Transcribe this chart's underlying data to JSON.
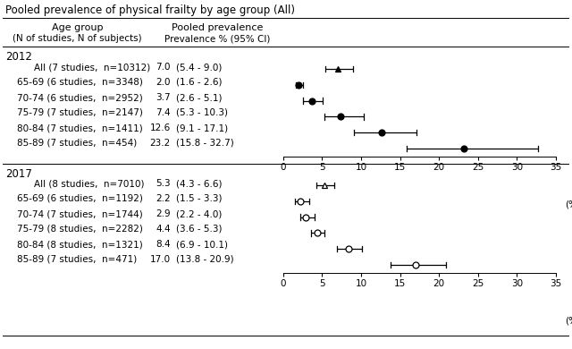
{
  "title": "Pooled prevalence of physical frailty by age group (All)",
  "xmin": 0,
  "xmax": 35,
  "xticks": [
    0,
    5,
    10,
    15,
    20,
    25,
    30,
    35
  ],
  "groups": [
    {
      "year": "2012",
      "rows": [
        {
          "label": "All (7 studies,  n=10312)",
          "val_str": "7.0",
          "ci_str": "(5.4 - 9.0)",
          "est": 7.0,
          "lo": 5.4,
          "hi": 9.0,
          "marker": "^",
          "filled": true,
          "indent": true
        },
        {
          "label": "65-69 (6 studies,  n=3348)",
          "val_str": "2.0",
          "ci_str": "(1.6 - 2.6)",
          "est": 2.0,
          "lo": 1.6,
          "hi": 2.6,
          "marker": "o",
          "filled": true,
          "indent": false
        },
        {
          "label": "70-74 (6 studies,  n=2952)",
          "val_str": "3.7",
          "ci_str": "(2.6 - 5.1)",
          "est": 3.7,
          "lo": 2.6,
          "hi": 5.1,
          "marker": "o",
          "filled": true,
          "indent": false
        },
        {
          "label": "75-79 (7 studies,  n=2147)",
          "val_str": "7.4",
          "ci_str": "(5.3 - 10.3)",
          "est": 7.4,
          "lo": 5.3,
          "hi": 10.3,
          "marker": "o",
          "filled": true,
          "indent": false
        },
        {
          "label": "80-84 (7 studies,  n=1411)",
          "val_str": "12.6",
          "ci_str": "(9.1 - 17.1)",
          "est": 12.6,
          "lo": 9.1,
          "hi": 17.1,
          "marker": "o",
          "filled": true,
          "indent": false
        },
        {
          "label": "85-89 (7 studies,  n=454)",
          "val_str": "23.2",
          "ci_str": "(15.8 - 32.7)",
          "est": 23.2,
          "lo": 15.8,
          "hi": 32.7,
          "marker": "o",
          "filled": true,
          "indent": false
        }
      ]
    },
    {
      "year": "2017",
      "rows": [
        {
          "label": "All (8 studies,  n=7010)",
          "val_str": "5.3",
          "ci_str": "(4.3 - 6.6)",
          "est": 5.3,
          "lo": 4.3,
          "hi": 6.6,
          "marker": "^",
          "filled": false,
          "indent": true
        },
        {
          "label": "65-69 (6 studies,  n=1192)",
          "val_str": "2.2",
          "ci_str": "(1.5 - 3.3)",
          "est": 2.2,
          "lo": 1.5,
          "hi": 3.3,
          "marker": "o",
          "filled": false,
          "indent": false
        },
        {
          "label": "70-74 (7 studies,  n=1744)",
          "val_str": "2.9",
          "ci_str": "(2.2 - 4.0)",
          "est": 2.9,
          "lo": 2.2,
          "hi": 4.0,
          "marker": "o",
          "filled": false,
          "indent": false
        },
        {
          "label": "75-79 (8 studies,  n=2282)",
          "val_str": "4.4",
          "ci_str": "(3.6 - 5.3)",
          "est": 4.4,
          "lo": 3.6,
          "hi": 5.3,
          "marker": "o",
          "filled": false,
          "indent": false
        },
        {
          "label": "80-84 (8 studies,  n=1321)",
          "val_str": "8.4",
          "ci_str": "(6.9 - 10.1)",
          "est": 8.4,
          "lo": 6.9,
          "hi": 10.1,
          "marker": "o",
          "filled": false,
          "indent": false
        },
        {
          "label": "85-89 (7 studies,  n=471)",
          "val_str": "17.0",
          "ci_str": "(13.8 - 20.9)",
          "est": 17.0,
          "lo": 13.8,
          "hi": 20.9,
          "marker": "o",
          "filled": false,
          "indent": false
        }
      ]
    }
  ],
  "fontsize_title": 8.5,
  "fontsize_header": 8.0,
  "fontsize_body": 7.5,
  "fontsize_year": 8.5,
  "fontsize_axis": 7.5
}
